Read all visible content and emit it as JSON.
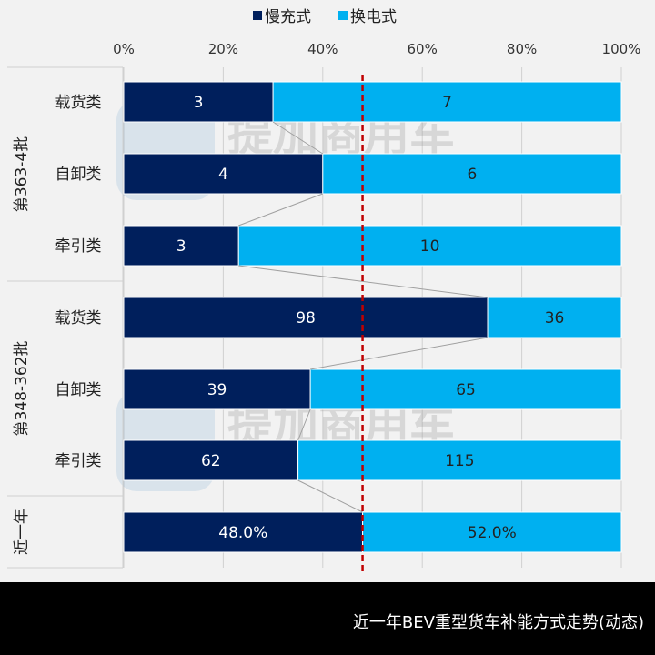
{
  "chart_data": {
    "type": "bar",
    "stacked": "percent",
    "orientation": "horizontal",
    "title": "近一年BEV重型货车补能方式走势(动态)",
    "legend": {
      "position": "top",
      "entries": [
        "慢充式",
        "换电式"
      ]
    },
    "xaxis": {
      "ticks": [
        "0%",
        "20%",
        "40%",
        "60%",
        "80%",
        "100%"
      ],
      "range": [
        0,
        100
      ]
    },
    "groups": [
      {
        "label": "第363-4批",
        "categories": [
          "载货类",
          "自卸类",
          "牵引类"
        ]
      },
      {
        "label": "第348-362批",
        "categories": [
          "载货类",
          "自卸类",
          "牵引类"
        ]
      },
      {
        "label": "近一年",
        "categories": [
          ""
        ]
      }
    ],
    "series": [
      {
        "name": "慢充式",
        "color": "#001f5c",
        "values": [
          3,
          4,
          3,
          98,
          39,
          62,
          48.0
        ],
        "labels": [
          "3",
          "4",
          "3",
          "98",
          "39",
          "62",
          "48.0%"
        ]
      },
      {
        "name": "换电式",
        "color": "#00b0f0",
        "values": [
          7,
          6,
          10,
          36,
          65,
          115,
          52.0
        ],
        "labels": [
          "7",
          "6",
          "10",
          "36",
          "65",
          "115",
          "52.0%"
        ]
      }
    ],
    "reference_line": {
      "value": 48,
      "color": "#c00000",
      "style": "dashed"
    },
    "watermark": "提加商用车 TruckHome"
  }
}
